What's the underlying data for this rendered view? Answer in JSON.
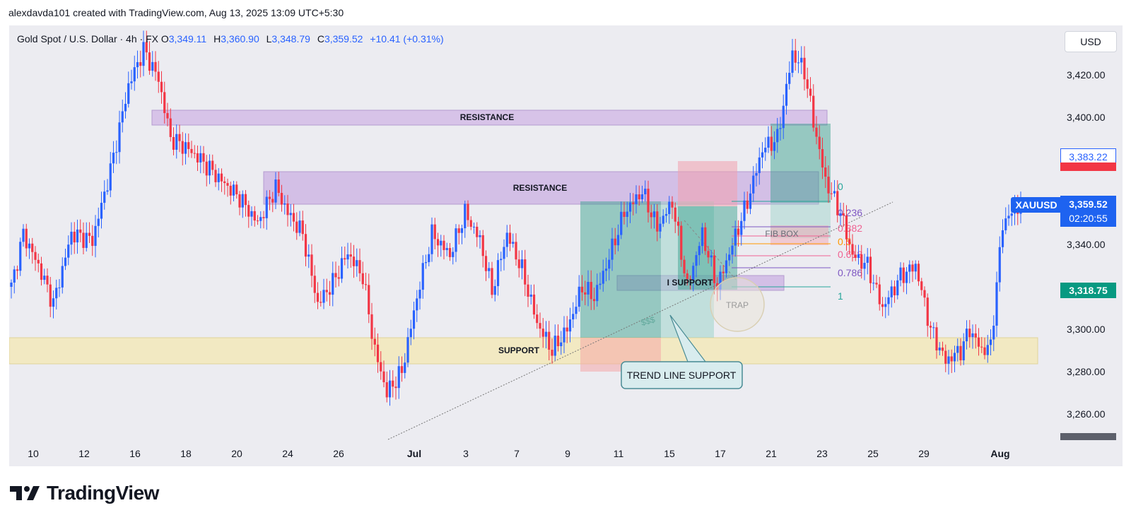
{
  "header": {
    "text": "alexdavda101 created with TradingView.com, Aug 13, 2025 13:09 UTC+5:30"
  },
  "legend": {
    "symbol": "Gold Spot / U.S. Dollar · 4h · FX",
    "o_label": "O",
    "o_value": "3,349.11",
    "h_label": "H",
    "h_value": "3,360.90",
    "l_label": "L",
    "l_value": "3,348.79",
    "c_label": "C",
    "c_value": "3,359.52",
    "change": "+10.41 (+0.31%)"
  },
  "currency": "USD",
  "price_tags": {
    "symbol": "XAUUSD",
    "last_price": "3,359.52",
    "countdown": "02:20:55",
    "high_line": "3,383.22",
    "green_level": "3,318.75"
  },
  "annotations": {
    "resistance_upper": "RESISTANCE",
    "resistance_lower": "RESISTANCE",
    "support": "SUPPORT",
    "i_support": "I SUPPORT",
    "fib_box": "FIB BOX",
    "trap": "TRAP",
    "liquidity": "$$$",
    "trend_line_support": "TREND LINE SUPPORT"
  },
  "fib_levels": [
    {
      "label": "0",
      "color": "#26a69a"
    },
    {
      "label": "0.236",
      "color": "#7e57c2"
    },
    {
      "label": "0.382",
      "color": "#f06292"
    },
    {
      "label": "0.5",
      "color": "#ff9800"
    },
    {
      "label": "0.618",
      "color": "#f06292"
    },
    {
      "label": "0.786",
      "color": "#7e57c2"
    },
    {
      "label": "1",
      "color": "#26a69a"
    }
  ],
  "footer": {
    "brand": "TradingView"
  },
  "colors": {
    "up": "#2962ff",
    "down": "#f23645",
    "resistance": "#d3bfe6",
    "support": "#f2e6b5",
    "long": "#2e9e88"
  },
  "chart_data": {
    "type": "candlestick",
    "symbol": "XAUUSD",
    "timeframe": "4h",
    "ylim": [
      3248.36,
      3435
    ],
    "y_ticks": [
      "3,260.00",
      "3,280.00",
      "3,300.00",
      "3,340.00",
      "3,400.00",
      "3,420.00"
    ],
    "x_ticks": [
      "10",
      "12",
      "16",
      "18",
      "20",
      "24",
      "26",
      "Jul",
      "3",
      "7",
      "9",
      "11",
      "15",
      "17",
      "21",
      "23",
      "25",
      "29",
      "Aug"
    ],
    "anchors": [
      [
        0,
        3320
      ],
      [
        4,
        3345
      ],
      [
        9,
        3330
      ],
      [
        14,
        3312
      ],
      [
        20,
        3345
      ],
      [
        27,
        3342
      ],
      [
        33,
        3375
      ],
      [
        39,
        3415
      ],
      [
        44,
        3432
      ],
      [
        49,
        3418
      ],
      [
        53,
        3390
      ],
      [
        58,
        3386
      ],
      [
        63,
        3380
      ],
      [
        70,
        3370
      ],
      [
        76,
        3362
      ],
      [
        82,
        3350
      ],
      [
        88,
        3367
      ],
      [
        92,
        3355
      ],
      [
        97,
        3345
      ],
      [
        102,
        3312
      ],
      [
        107,
        3322
      ],
      [
        112,
        3336
      ],
      [
        117,
        3325
      ],
      [
        121,
        3290
      ],
      [
        125,
        3270
      ],
      [
        130,
        3280
      ],
      [
        135,
        3315
      ],
      [
        140,
        3345
      ],
      [
        146,
        3335
      ],
      [
        151,
        3355
      ],
      [
        156,
        3342
      ],
      [
        160,
        3318
      ],
      [
        165,
        3345
      ],
      [
        170,
        3328
      ],
      [
        175,
        3303
      ],
      [
        180,
        3290
      ],
      [
        185,
        3300
      ],
      [
        190,
        3320
      ],
      [
        194,
        3315
      ],
      [
        198,
        3330
      ],
      [
        204,
        3355
      ],
      [
        210,
        3365
      ],
      [
        215,
        3348
      ],
      [
        220,
        3360
      ],
      [
        225,
        3320
      ],
      [
        230,
        3345
      ],
      [
        235,
        3320
      ],
      [
        240,
        3340
      ],
      [
        245,
        3360
      ],
      [
        250,
        3385
      ],
      [
        255,
        3390
      ],
      [
        260,
        3430
      ],
      [
        264,
        3422
      ],
      [
        267,
        3398
      ],
      [
        271,
        3370
      ],
      [
        276,
        3355
      ],
      [
        280,
        3335
      ],
      [
        285,
        3330
      ],
      [
        290,
        3310
      ],
      [
        296,
        3325
      ],
      [
        301,
        3330
      ],
      [
        306,
        3300
      ],
      [
        311,
        3285
      ],
      [
        316,
        3290
      ],
      [
        319,
        3300
      ],
      [
        323,
        3290
      ],
      [
        326,
        3292
      ],
      [
        330,
        3350
      ],
      [
        336,
        3359.52
      ]
    ]
  }
}
